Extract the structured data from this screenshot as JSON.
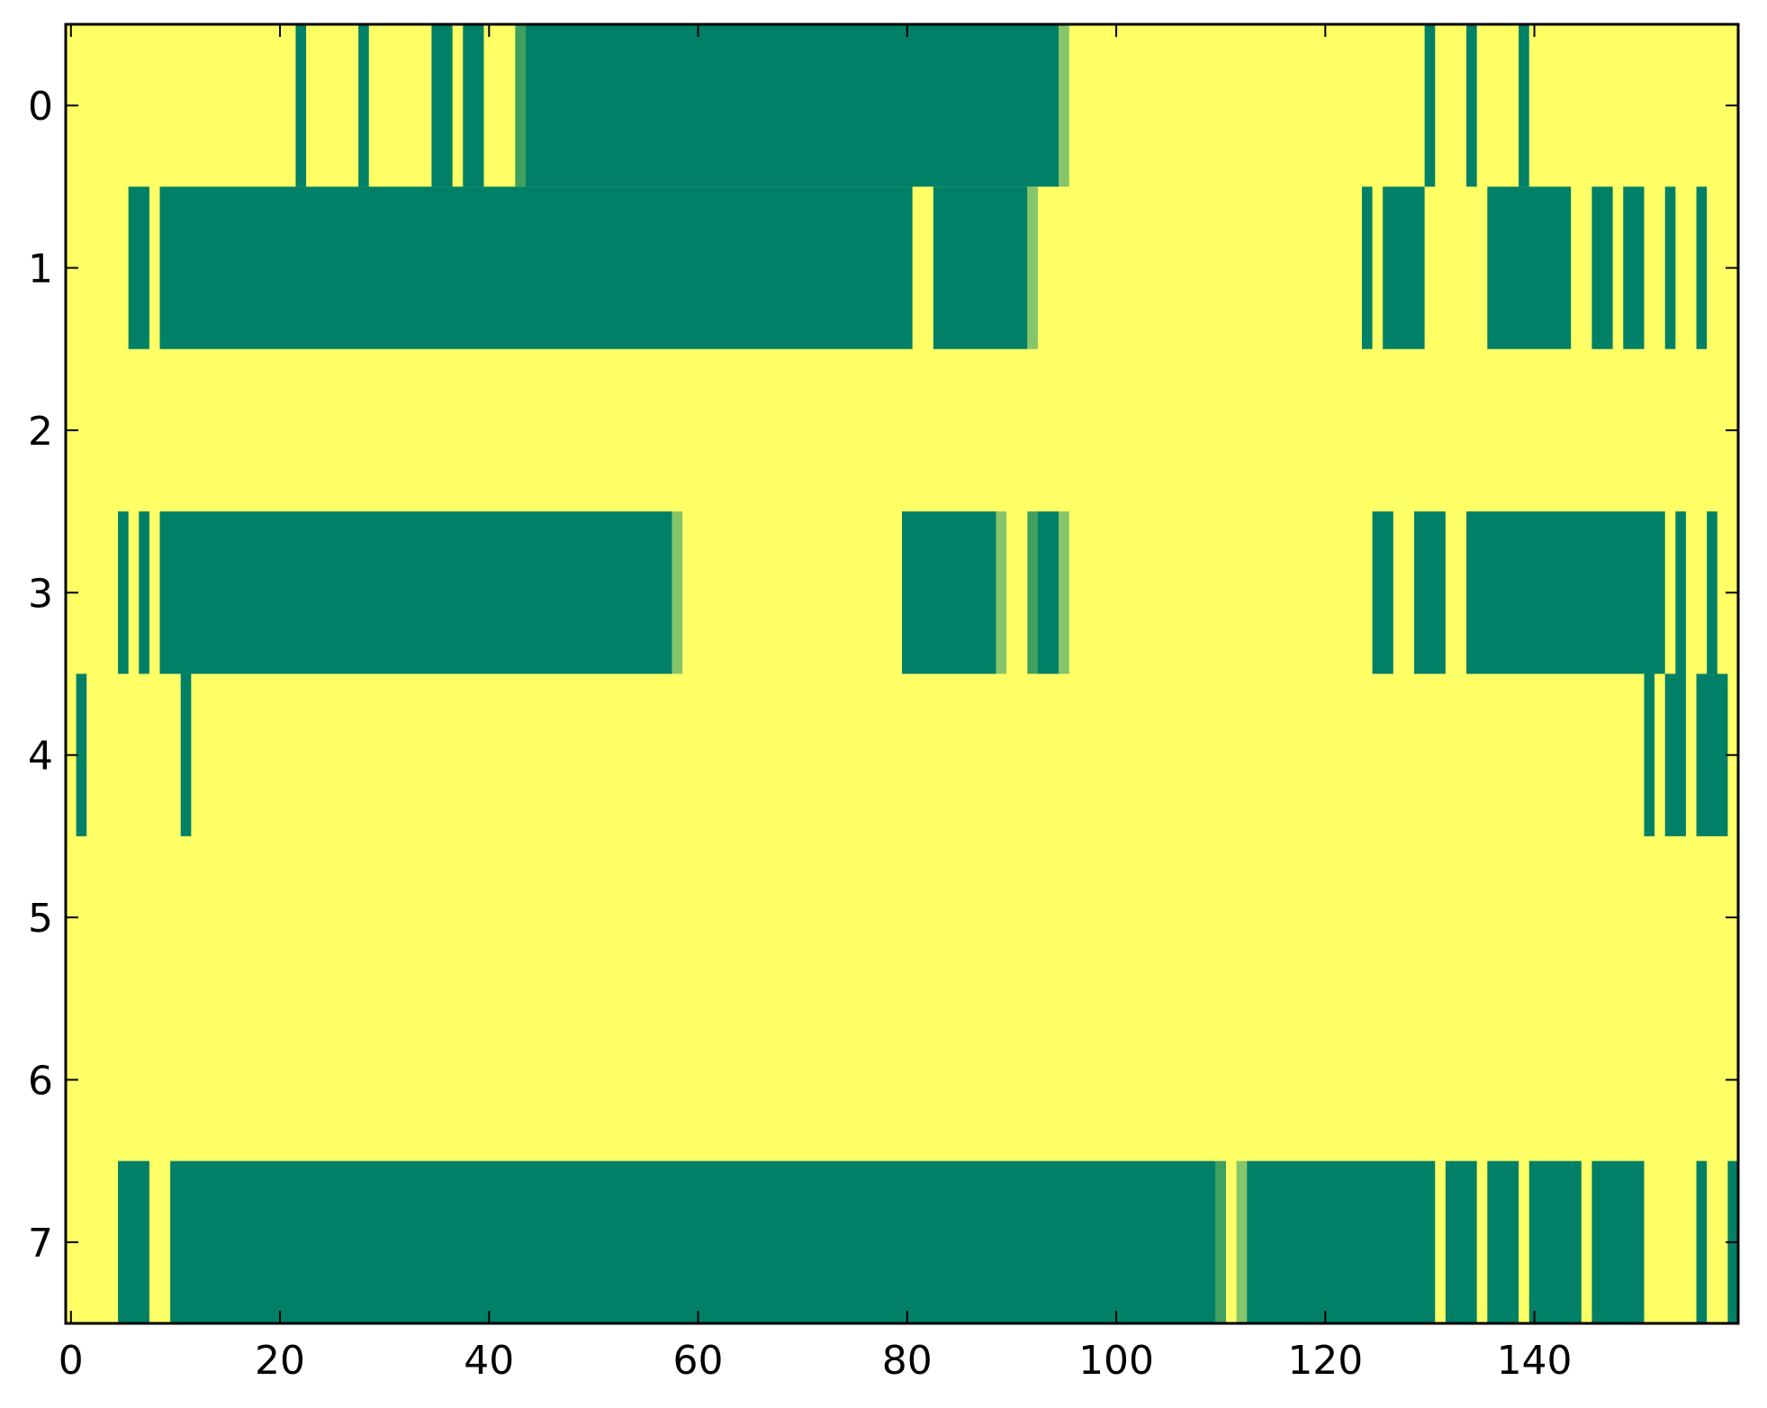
{
  "chart_data": {
    "type": "heatmap",
    "title": "",
    "xlabel": "",
    "ylabel": "",
    "n_rows": 8,
    "n_cols": 160,
    "xlim": [
      -0.5,
      159.5
    ],
    "ylim": [
      7.5,
      -0.5
    ],
    "xticks": [
      0,
      20,
      40,
      60,
      80,
      100,
      120,
      140
    ],
    "xtick_labels": [
      "0",
      "20",
      "40",
      "60",
      "80",
      "100",
      "120",
      "140"
    ],
    "yticks": [
      0,
      1,
      2,
      3,
      4,
      5,
      6,
      7
    ],
    "ytick_labels": [
      "0",
      "1",
      "2",
      "3",
      "4",
      "5",
      "6",
      "7"
    ],
    "grid": false,
    "background_value": 0,
    "colormap": {
      "0.0": "#ffff66",
      "0.5": "#86c56b",
      "0.8": "#3fa060",
      "1.0": "#008066"
    },
    "rows": [
      {
        "row": 0,
        "segments": [
          [
            22,
            1,
            1
          ],
          [
            28,
            1,
            1
          ],
          [
            35,
            2,
            1
          ],
          [
            38,
            2,
            1
          ],
          [
            43,
            1,
            0.8
          ],
          [
            44,
            51,
            1
          ],
          [
            95,
            1,
            0.5
          ],
          [
            130,
            1,
            1
          ],
          [
            134,
            1,
            1
          ],
          [
            139,
            1,
            1
          ]
        ]
      },
      {
        "row": 1,
        "segments": [
          [
            6,
            2,
            1
          ],
          [
            9,
            72,
            1
          ],
          [
            83,
            9,
            1
          ],
          [
            92,
            1,
            0.5
          ],
          [
            124,
            1,
            1
          ],
          [
            126,
            4,
            1
          ],
          [
            136,
            8,
            1
          ],
          [
            146,
            2,
            1
          ],
          [
            149,
            2,
            1
          ],
          [
            153,
            1,
            1
          ],
          [
            156,
            1,
            1
          ]
        ]
      },
      {
        "row": 2,
        "segments": []
      },
      {
        "row": 3,
        "segments": [
          [
            5,
            1,
            1
          ],
          [
            7,
            1,
            1
          ],
          [
            9,
            49,
            1
          ],
          [
            58,
            1,
            0.5
          ],
          [
            80,
            9,
            1
          ],
          [
            89,
            1,
            0.5
          ],
          [
            92,
            1,
            0.8
          ],
          [
            93,
            2,
            1
          ],
          [
            95,
            1,
            0.5
          ],
          [
            125,
            2,
            1
          ],
          [
            129,
            3,
            1
          ],
          [
            134,
            19,
            1
          ],
          [
            154,
            1,
            1
          ],
          [
            157,
            1,
            1
          ]
        ]
      },
      {
        "row": 4,
        "segments": [
          [
            1,
            1,
            1
          ],
          [
            11,
            1,
            1
          ],
          [
            151,
            1,
            1
          ],
          [
            153,
            2,
            1
          ],
          [
            156,
            3,
            1
          ]
        ]
      },
      {
        "row": 5,
        "segments": []
      },
      {
        "row": 6,
        "segments": []
      },
      {
        "row": 7,
        "segments": [
          [
            5,
            3,
            1
          ],
          [
            10,
            100,
            1
          ],
          [
            110,
            1,
            0.8
          ],
          [
            112,
            1,
            0.5
          ],
          [
            113,
            18,
            1
          ],
          [
            132,
            3,
            1
          ],
          [
            136,
            3,
            1
          ],
          [
            140,
            5,
            1
          ],
          [
            146,
            5,
            1
          ],
          [
            156,
            1,
            1
          ],
          [
            159,
            1,
            1
          ]
        ]
      }
    ]
  }
}
